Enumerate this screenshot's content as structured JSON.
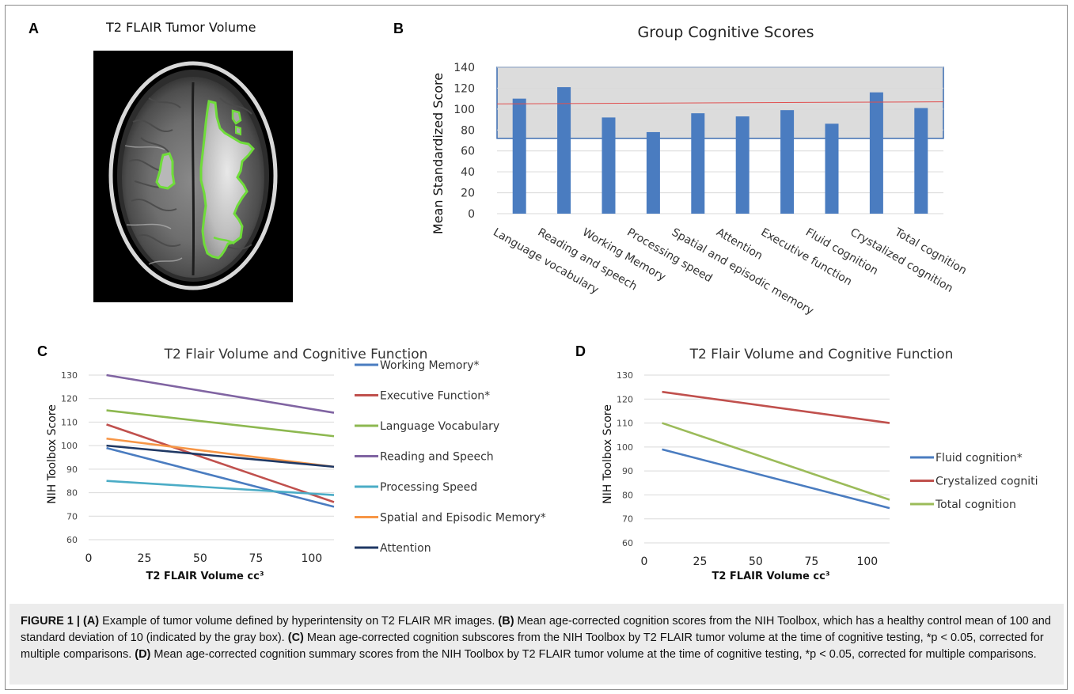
{
  "panels": {
    "a": {
      "letter": "A",
      "title": "T2 FLAIR Tumor Volume"
    },
    "b": {
      "letter": "B"
    },
    "c": {
      "letter": "C"
    },
    "d": {
      "letter": "D"
    }
  },
  "chart_data": [
    {
      "id": "B",
      "type": "bar",
      "title": "Group Cognitive Scores",
      "ylabel": "Mean Standardized Score",
      "xlabel": "",
      "ylim": [
        0,
        140
      ],
      "yticks": [
        0,
        20,
        40,
        60,
        80,
        100,
        120,
        140
      ],
      "categories": [
        "Language vocabulary",
        "Reading and speech",
        "Working Memory",
        "Processing speed",
        "Spatial and episodic memory",
        "Attention",
        "Executive function",
        "Fluid cognition",
        "Crystalized cognition",
        "Total cognition"
      ],
      "values": [
        110,
        121,
        92,
        78,
        96,
        93,
        99,
        86,
        116,
        101
      ],
      "bar_color": "#4a7cc0",
      "healthy_band": [
        72,
        140
      ],
      "band_color": "#dcdcdc",
      "trend_line": [
        105,
        107
      ],
      "trend_color": "#e05050",
      "grid": true
    },
    {
      "id": "C",
      "type": "line",
      "title": "T2 Flair Volume and Cognitive Function",
      "xlabel": "T2 FLAIR Volume cc³",
      "ylabel": "NIH Toolbox Score",
      "xlim": [
        0,
        110
      ],
      "ylim": [
        60,
        130
      ],
      "xticks": [
        0,
        25,
        50,
        75,
        100
      ],
      "yticks": [
        60,
        70,
        80,
        90,
        100,
        110,
        120,
        130
      ],
      "grid": true,
      "legend": "right",
      "series": [
        {
          "name": "Working Memory*",
          "color": "#4a7cc0",
          "x": [
            8,
            110
          ],
          "y": [
            99,
            74
          ]
        },
        {
          "name": "Executive Function*",
          "color": "#c0504d",
          "x": [
            8,
            110
          ],
          "y": [
            109,
            76
          ]
        },
        {
          "name": "Language Vocabulary",
          "color": "#8db850",
          "x": [
            8,
            110
          ],
          "y": [
            115,
            104
          ]
        },
        {
          "name": "Reading and Speech",
          "color": "#8064a2",
          "x": [
            8,
            110
          ],
          "y": [
            130,
            114
          ]
        },
        {
          "name": "Processing Speed",
          "color": "#4bacc6",
          "x": [
            8,
            110
          ],
          "y": [
            85,
            79
          ]
        },
        {
          "name": "Spatial and Episodic Memory*",
          "color": "#f79646",
          "x": [
            8,
            110
          ],
          "y": [
            103,
            91
          ]
        },
        {
          "name": "Attention",
          "color": "#1f3864",
          "x": [
            8,
            110
          ],
          "y": [
            100,
            91
          ]
        }
      ]
    },
    {
      "id": "D",
      "type": "line",
      "title": "T2 Flair Volume and Cognitive Function",
      "xlabel": "T2 FLAIR Volume cc³",
      "ylabel": "NIH Toolbox Score",
      "xlim": [
        0,
        110
      ],
      "ylim": [
        60,
        130
      ],
      "xticks": [
        0,
        25,
        50,
        75,
        100
      ],
      "yticks": [
        60,
        70,
        80,
        90,
        100,
        110,
        120,
        130
      ],
      "grid": true,
      "legend": "right",
      "series": [
        {
          "name": "Fluid cognition*",
          "color": "#4a7cc0",
          "x": [
            8,
            110
          ],
          "y": [
            99,
            74.5
          ]
        },
        {
          "name": "Crystalized cognition",
          "color": "#c0504d",
          "x": [
            8,
            110
          ],
          "y": [
            123,
            110
          ]
        },
        {
          "name": "Total cognition",
          "color": "#9bbb59",
          "x": [
            8,
            110
          ],
          "y": [
            110,
            78
          ]
        }
      ]
    }
  ],
  "caption": {
    "label": "FIGURE 1 |",
    "a_tag": "(A)",
    "a_text": " Example of tumor volume defined by hyperintensity on T2 FLAIR MR images. ",
    "b_tag": "(B)",
    "b_text": " Mean age-corrected cognition scores from the NIH Toolbox, which has a healthy control mean of 100 and standard deviation of 10 (indicated by the gray box). ",
    "c_tag": "(C)",
    "c_text": " Mean age-corrected cognition subscores from the NIH Toolbox by T2 FLAIR tumor volume at the time of cognitive testing, *p < 0.05, corrected for multiple comparisons. ",
    "d_tag": "(D)",
    "d_text": " Mean age-corrected cognition summary scores from the NIH Toolbox by T2 FLAIR tumor volume at the time of cognitive testing, *p < 0.05, corrected for multiple comparisons."
  }
}
